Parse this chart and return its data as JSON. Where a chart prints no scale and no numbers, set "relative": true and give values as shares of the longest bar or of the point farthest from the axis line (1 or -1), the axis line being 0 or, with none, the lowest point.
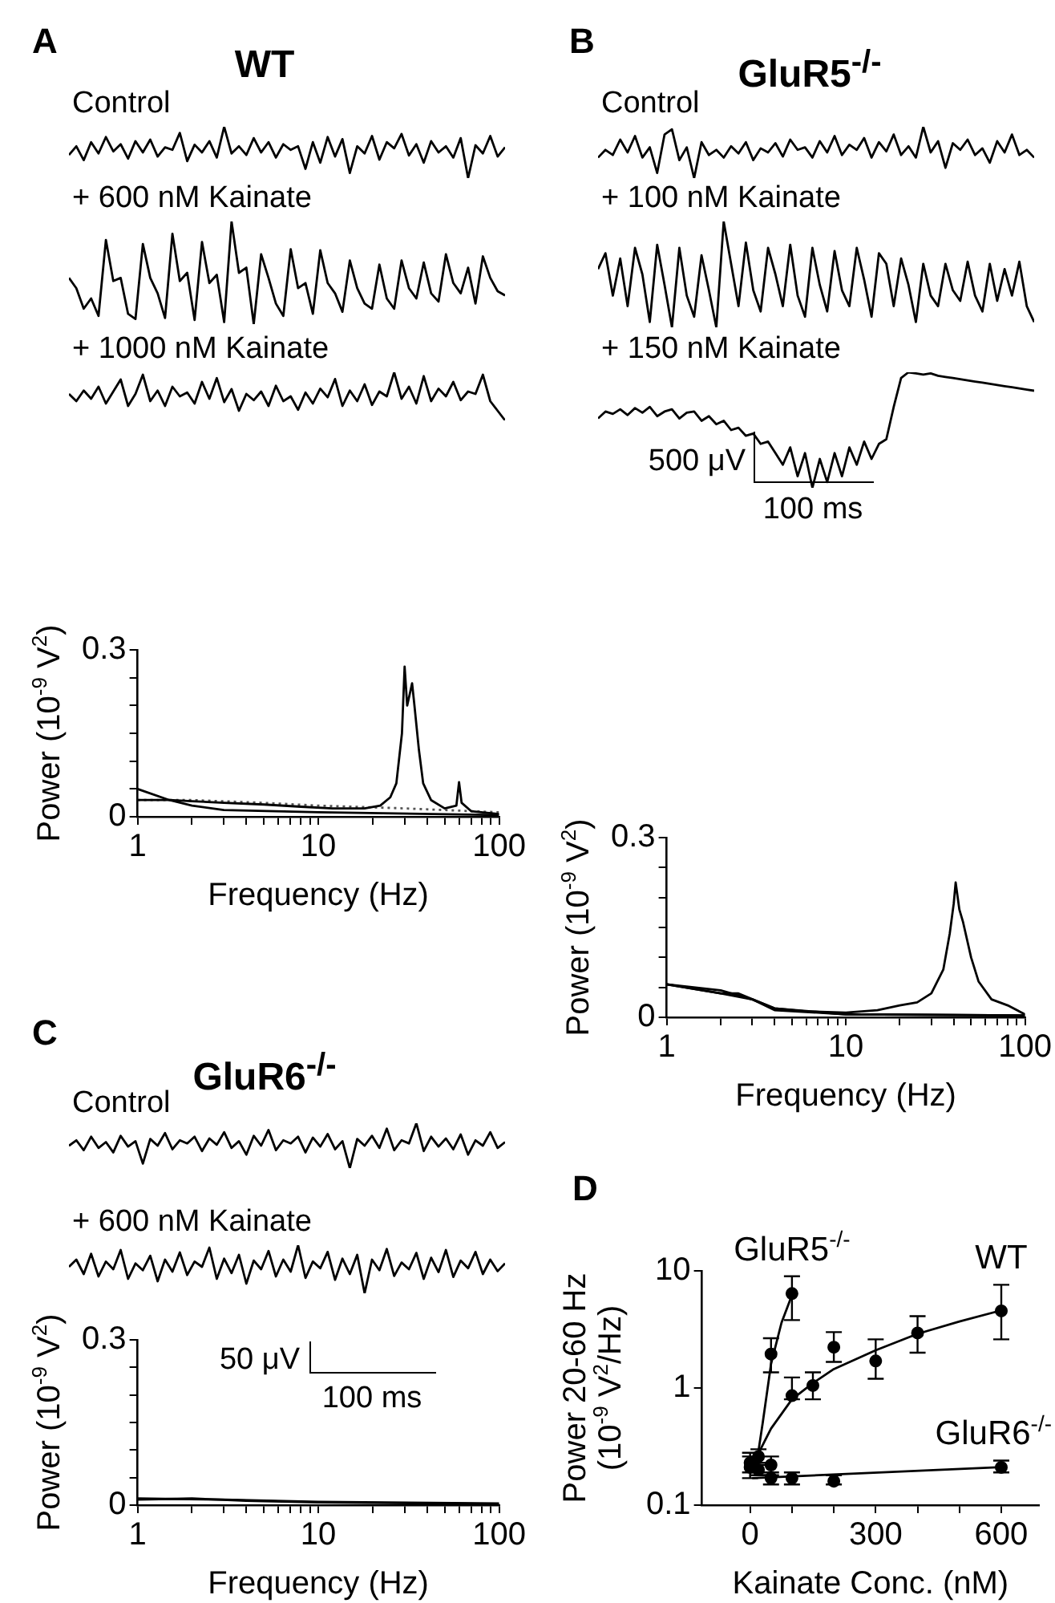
{
  "chart_data": [
    {
      "type": "line",
      "title": "WT",
      "subtitle": "Control",
      "annotations": [
        "A"
      ],
      "relative": true,
      "tick_labels": false,
      "categories": [
        null,
        null,
        null,
        null,
        null,
        null,
        null,
        null,
        null,
        null,
        null,
        null,
        null,
        null,
        null,
        null,
        null,
        null,
        null,
        null,
        null,
        null,
        null,
        null,
        null,
        null,
        null,
        null,
        null,
        null,
        null,
        null,
        null,
        null,
        null,
        null,
        null,
        null,
        null,
        null,
        null,
        null,
        null,
        null,
        null,
        null,
        null,
        null,
        null,
        null,
        null,
        null,
        null,
        null,
        null,
        null,
        null,
        null,
        null,
        null
      ],
      "series": [
        {
          "color": "#000000",
          "values": [
            0.45,
            0.62,
            0.35,
            0.7,
            0.48,
            0.8,
            0.52,
            0.66,
            0.38,
            0.72,
            0.5,
            0.75,
            0.42,
            0.6,
            0.55,
            0.88,
            0.33,
            0.65,
            0.5,
            0.72,
            0.4,
            1.0,
            0.48,
            0.62,
            0.45,
            0.78,
            0.5,
            0.7,
            0.4,
            0.66,
            0.55,
            0.62,
            0.18,
            0.7,
            0.3,
            0.8,
            0.42,
            0.76,
            0.1,
            0.62,
            0.48,
            0.82,
            0.36,
            0.7,
            0.58,
            0.86,
            0.44,
            0.66,
            0.3,
            0.72,
            0.5,
            0.62,
            0.4,
            0.78,
            0.0,
            0.64,
            0.48,
            0.82,
            0.42,
            0.6
          ]
        }
      ]
    },
    {
      "type": "line",
      "title": "+ 600 nM Kainate",
      "relative": true,
      "tick_labels": false,
      "categories": [
        null,
        null,
        null,
        null,
        null,
        null,
        null,
        null,
        null,
        null,
        null,
        null,
        null,
        null,
        null,
        null,
        null,
        null,
        null,
        null,
        null,
        null,
        null,
        null,
        null,
        null,
        null,
        null,
        null,
        null,
        null,
        null,
        null,
        null,
        null,
        null,
        null,
        null,
        null,
        null,
        null,
        null,
        null,
        null,
        null,
        null,
        null,
        null,
        null,
        null,
        null,
        null,
        null,
        null,
        null,
        null,
        null,
        null,
        null,
        null
      ],
      "series": [
        {
          "color": "#000000",
          "values": [
            0.45,
            0.35,
            0.15,
            0.25,
            0.08,
            0.82,
            0.42,
            0.45,
            0.1,
            0.05,
            0.78,
            0.45,
            0.3,
            0.06,
            0.88,
            0.42,
            0.5,
            0.04,
            0.8,
            0.4,
            0.48,
            0.02,
            1.0,
            0.5,
            0.55,
            0.0,
            0.68,
            0.45,
            0.2,
            0.08,
            0.73,
            0.35,
            0.4,
            0.1,
            0.72,
            0.4,
            0.3,
            0.12,
            0.62,
            0.35,
            0.2,
            0.15,
            0.58,
            0.25,
            0.15,
            0.62,
            0.35,
            0.25,
            0.6,
            0.3,
            0.22,
            0.68,
            0.4,
            0.3,
            0.55,
            0.2,
            0.66,
            0.45,
            0.32,
            0.28
          ]
        }
      ]
    },
    {
      "type": "line",
      "title": "+ 1000 nM Kainate",
      "relative": true,
      "tick_labels": false,
      "categories": [
        null,
        null,
        null,
        null,
        null,
        null,
        null,
        null,
        null,
        null,
        null,
        null,
        null,
        null,
        null,
        null,
        null,
        null,
        null,
        null,
        null,
        null,
        null,
        null,
        null,
        null,
        null,
        null,
        null,
        null,
        null,
        null,
        null,
        null,
        null,
        null,
        null,
        null,
        null,
        null,
        null,
        null,
        null,
        null,
        null,
        null,
        null,
        null,
        null,
        null,
        null,
        null,
        null,
        null,
        null,
        null,
        null,
        null,
        null,
        null
      ],
      "series": [
        {
          "color": "#000000",
          "values": [
            0.55,
            0.4,
            0.62,
            0.45,
            0.7,
            0.35,
            0.6,
            0.85,
            0.3,
            0.55,
            0.95,
            0.4,
            0.62,
            0.3,
            0.7,
            0.5,
            0.58,
            0.35,
            0.8,
            0.45,
            0.88,
            0.38,
            0.65,
            0.2,
            0.55,
            0.42,
            0.6,
            0.3,
            0.72,
            0.4,
            0.5,
            0.22,
            0.58,
            0.35,
            0.66,
            0.48,
            0.86,
            0.3,
            0.62,
            0.4,
            0.75,
            0.32,
            0.6,
            0.5,
            1.0,
            0.45,
            0.7,
            0.35,
            0.92,
            0.4,
            0.66,
            0.5,
            0.8,
            0.42,
            0.6,
            0.55,
            0.95,
            0.4,
            0.2,
            0.0
          ]
        }
      ]
    },
    {
      "type": "line",
      "xlabel": "Frequency (Hz)",
      "ylabel": "Power (10$^{-9}$ V$^{2}$)",
      "log": "x",
      "xlim": [
        1,
        100
      ],
      "ylim": [
        0,
        0.3
      ],
      "xticks": [
        1,
        {
          "value": 2,
          "label": null
        },
        {
          "value": 3,
          "label": null
        },
        {
          "value": 4,
          "label": null
        },
        {
          "value": 5,
          "label": null
        },
        {
          "value": 6,
          "label": null
        },
        {
          "value": 7,
          "label": null
        },
        {
          "value": 8,
          "label": null
        },
        {
          "value": 9,
          "label": null
        },
        10,
        {
          "value": 20,
          "label": null
        },
        {
          "value": 30,
          "label": null
        },
        {
          "value": 40,
          "label": null
        },
        {
          "value": 50,
          "label": null
        },
        {
          "value": 60,
          "label": null
        },
        {
          "value": 70,
          "label": null
        },
        {
          "value": 80,
          "label": null
        },
        {
          "value": 90,
          "label": null
        },
        100
      ],
      "yticks": [
        0,
        {
          "value": 0.05,
          "label": null
        },
        {
          "value": 0.1,
          "label": null
        },
        {
          "value": 0.15,
          "label": null
        },
        {
          "value": 0.2,
          "label": null
        },
        {
          "value": 0.25,
          "label": null
        },
        0.3
      ],
      "series": [
        {
          "color": "#000000",
          "x": [
            1,
            1.5,
            2,
            3,
            5,
            8,
            12,
            18,
            22,
            25,
            27,
            29,
            30,
            31,
            32,
            33,
            34,
            36,
            38,
            42,
            50,
            58,
            60,
            62,
            70,
            100
          ],
          "values": [
            0.03,
            0.03,
            0.028,
            0.025,
            0.022,
            0.018,
            0.015,
            0.015,
            0.02,
            0.035,
            0.06,
            0.15,
            0.27,
            0.2,
            0.22,
            0.24,
            0.2,
            0.12,
            0.06,
            0.03,
            0.015,
            0.02,
            0.062,
            0.025,
            0.01,
            0.005
          ]
        },
        {
          "color": "#000000",
          "x": [
            1,
            1.5,
            2,
            3,
            10,
            100
          ],
          "values": [
            0.05,
            0.03,
            0.02,
            0.012,
            0.008,
            0.003
          ]
        },
        {
          "color": "#555555",
          "line_style": "dotted",
          "x": [
            1,
            2,
            5,
            10,
            30,
            100
          ],
          "values": [
            0.03,
            0.03,
            0.025,
            0.02,
            0.015,
            0.008
          ]
        }
      ]
    },
    {
      "type": "line",
      "title": "GluR5$^{-/-}$",
      "subtitle": "Control",
      "annotations": [
        "B"
      ],
      "relative": true,
      "tick_labels": false,
      "categories": [
        null,
        null,
        null,
        null,
        null,
        null,
        null,
        null,
        null,
        null,
        null,
        null,
        null,
        null,
        null,
        null,
        null,
        null,
        null,
        null,
        null,
        null,
        null,
        null,
        null,
        null,
        null,
        null,
        null,
        null,
        null,
        null,
        null,
        null,
        null,
        null,
        null,
        null,
        null,
        null,
        null,
        null,
        null,
        null,
        null,
        null,
        null,
        null,
        null,
        null,
        null,
        null,
        null,
        null,
        null,
        null,
        null,
        null,
        null,
        null
      ],
      "series": [
        {
          "color": "#000000",
          "values": [
            0.4,
            0.55,
            0.45,
            0.75,
            0.5,
            0.82,
            0.4,
            0.6,
            0.1,
            0.85,
            0.95,
            0.35,
            0.6,
            0.0,
            0.7,
            0.45,
            0.55,
            0.4,
            0.62,
            0.48,
            0.7,
            0.35,
            0.58,
            0.5,
            0.68,
            0.42,
            0.75,
            0.55,
            0.6,
            0.4,
            0.72,
            0.5,
            0.82,
            0.45,
            0.65,
            0.55,
            0.78,
            0.4,
            0.7,
            0.52,
            0.85,
            0.45,
            0.62,
            0.4,
            1.0,
            0.5,
            0.72,
            0.2,
            0.68,
            0.55,
            0.75,
            0.45,
            0.58,
            0.3,
            0.72,
            0.5,
            0.85,
            0.45,
            0.55,
            0.4
          ]
        }
      ]
    },
    {
      "type": "line",
      "title": "+ 100 nM Kainate",
      "relative": true,
      "tick_labels": false,
      "categories": [
        null,
        null,
        null,
        null,
        null,
        null,
        null,
        null,
        null,
        null,
        null,
        null,
        null,
        null,
        null,
        null,
        null,
        null,
        null,
        null,
        null,
        null,
        null,
        null,
        null,
        null,
        null,
        null,
        null,
        null,
        null,
        null,
        null,
        null,
        null,
        null,
        null,
        null,
        null,
        null,
        null,
        null,
        null,
        null,
        null,
        null,
        null,
        null,
        null,
        null,
        null,
        null,
        null,
        null,
        null,
        null,
        null,
        null,
        null,
        null
      ],
      "series": [
        {
          "color": "#000000",
          "values": [
            0.55,
            0.7,
            0.3,
            0.65,
            0.2,
            0.75,
            0.5,
            0.05,
            0.78,
            0.4,
            0.0,
            0.75,
            0.3,
            0.1,
            0.68,
            0.35,
            0.0,
            1.0,
            0.6,
            0.2,
            0.8,
            0.35,
            0.15,
            0.75,
            0.5,
            0.2,
            0.78,
            0.3,
            0.1,
            0.75,
            0.4,
            0.15,
            0.72,
            0.35,
            0.2,
            0.75,
            0.45,
            0.1,
            0.7,
            0.6,
            0.2,
            0.65,
            0.4,
            0.05,
            0.6,
            0.3,
            0.2,
            0.6,
            0.35,
            0.25,
            0.62,
            0.3,
            0.15,
            0.6,
            0.25,
            0.55,
            0.3,
            0.62,
            0.2,
            0.05
          ]
        }
      ]
    },
    {
      "type": "line",
      "title": "+ 150 nM Kainate",
      "annotations": [
        "500 μV",
        "100 ms"
      ],
      "relative": true,
      "tick_labels": false,
      "categories": [
        null,
        null,
        null,
        null,
        null,
        null,
        null,
        null,
        null,
        null,
        null,
        null,
        null,
        null,
        null,
        null,
        null,
        null,
        null,
        null,
        null,
        null,
        null,
        null,
        null,
        null,
        null,
        null,
        null,
        null,
        null,
        null,
        null,
        null,
        null,
        null,
        null,
        null,
        null,
        null,
        null,
        null,
        null,
        null,
        null,
        null,
        null,
        null,
        null,
        null,
        null,
        null,
        null,
        null,
        null,
        null,
        null,
        null,
        null,
        null
      ],
      "series": [
        {
          "color": "#000000",
          "values": [
            0.6,
            0.66,
            0.64,
            0.68,
            0.63,
            0.69,
            0.65,
            0.7,
            0.62,
            0.66,
            0.68,
            0.6,
            0.65,
            0.66,
            0.58,
            0.62,
            0.55,
            0.58,
            0.5,
            0.52,
            0.45,
            0.47,
            0.38,
            0.4,
            0.3,
            0.2,
            0.35,
            0.1,
            0.3,
            0.0,
            0.25,
            0.05,
            0.3,
            0.1,
            0.35,
            0.2,
            0.4,
            0.25,
            0.38,
            0.42,
            0.7,
            0.95,
            1.0,
            0.99,
            0.98,
            0.99,
            0.97,
            0.96,
            0.95,
            0.94,
            0.93,
            0.92,
            0.91,
            0.9,
            0.89,
            0.88,
            0.87,
            0.86,
            0.85,
            0.84
          ]
        }
      ]
    },
    {
      "type": "line",
      "xlabel": "Frequency (Hz)",
      "ylabel": "Power (10$^{-9}$ V$^{2}$)",
      "log": "x",
      "xlim": [
        1,
        100
      ],
      "ylim": [
        0,
        0.3
      ],
      "xticks": [
        1,
        {
          "value": 2,
          "label": null
        },
        {
          "value": 3,
          "label": null
        },
        {
          "value": 4,
          "label": null
        },
        {
          "value": 5,
          "label": null
        },
        {
          "value": 6,
          "label": null
        },
        {
          "value": 7,
          "label": null
        },
        {
          "value": 8,
          "label": null
        },
        {
          "value": 9,
          "label": null
        },
        10,
        {
          "value": 20,
          "label": null
        },
        {
          "value": 30,
          "label": null
        },
        {
          "value": 40,
          "label": null
        },
        {
          "value": 50,
          "label": null
        },
        {
          "value": 60,
          "label": null
        },
        {
          "value": 70,
          "label": null
        },
        {
          "value": 80,
          "label": null
        },
        {
          "value": 90,
          "label": null
        },
        100
      ],
      "yticks": [
        0,
        {
          "value": 0.05,
          "label": null
        },
        {
          "value": 0.1,
          "label": null
        },
        {
          "value": 0.15,
          "label": null
        },
        {
          "value": 0.2,
          "label": null
        },
        {
          "value": 0.25,
          "label": null
        },
        0.3
      ],
      "series": [
        {
          "color": "#000000",
          "x": [
            1,
            2,
            3,
            4,
            6,
            10,
            15,
            20,
            25,
            30,
            35,
            38,
            40,
            41,
            43,
            45,
            50,
            55,
            65,
            80,
            100
          ],
          "values": [
            0.055,
            0.04,
            0.03,
            0.015,
            0.01,
            0.008,
            0.012,
            0.02,
            0.025,
            0.04,
            0.08,
            0.14,
            0.19,
            0.225,
            0.18,
            0.16,
            0.1,
            0.06,
            0.03,
            0.02,
            0.005
          ]
        },
        {
          "color": "#000000",
          "x": [
            1,
            2,
            3,
            4,
            10,
            100
          ],
          "values": [
            0.055,
            0.045,
            0.03,
            0.012,
            0.005,
            0.003
          ]
        },
        {
          "color": "#000000",
          "x": [
            1,
            2,
            2.5,
            4,
            10,
            100
          ],
          "values": [
            0.055,
            0.04,
            0.04,
            0.015,
            0.005,
            0.003
          ]
        }
      ]
    },
    {
      "type": "line",
      "title": "GluR6$^{-/-}$",
      "subtitle": "Control",
      "annotations": [
        "C"
      ],
      "relative": true,
      "tick_labels": false,
      "categories": [
        null,
        null,
        null,
        null,
        null,
        null,
        null,
        null,
        null,
        null,
        null,
        null,
        null,
        null,
        null,
        null,
        null,
        null,
        null,
        null,
        null,
        null,
        null,
        null,
        null,
        null,
        null,
        null,
        null,
        null,
        null,
        null,
        null,
        null,
        null,
        null,
        null,
        null,
        null,
        null,
        null,
        null,
        null,
        null,
        null,
        null,
        null,
        null,
        null,
        null,
        null,
        null,
        null,
        null,
        null,
        null,
        null,
        null,
        null,
        null
      ],
      "series": [
        {
          "color": "#000000",
          "values": [
            0.5,
            0.62,
            0.4,
            0.7,
            0.45,
            0.58,
            0.35,
            0.72,
            0.48,
            0.6,
            0.1,
            0.65,
            0.5,
            0.78,
            0.42,
            0.62,
            0.55,
            0.7,
            0.38,
            0.66,
            0.52,
            0.8,
            0.45,
            0.6,
            0.3,
            0.72,
            0.5,
            0.85,
            0.4,
            0.62,
            0.55,
            0.7,
            0.35,
            0.68,
            0.48,
            0.76,
            0.42,
            0.6,
            0.0,
            0.65,
            0.5,
            0.72,
            0.45,
            0.88,
            0.4,
            0.62,
            0.55,
            1.0,
            0.38,
            0.7,
            0.48,
            0.66,
            0.42,
            0.75,
            0.3,
            0.62,
            0.5,
            0.8,
            0.45,
            0.58
          ]
        }
      ]
    },
    {
      "type": "line",
      "title": "+ 600 nM Kainate",
      "annotations": [
        "50 μV",
        "100 ms"
      ],
      "relative": true,
      "tick_labels": false,
      "categories": [
        null,
        null,
        null,
        null,
        null,
        null,
        null,
        null,
        null,
        null,
        null,
        null,
        null,
        null,
        null,
        null,
        null,
        null,
        null,
        null,
        null,
        null,
        null,
        null,
        null,
        null,
        null,
        null,
        null,
        null,
        null,
        null,
        null,
        null,
        null,
        null,
        null,
        null,
        null,
        null,
        null,
        null,
        null,
        null,
        null,
        null,
        null,
        null,
        null,
        null,
        null,
        null,
        null,
        null,
        null,
        null,
        null,
        null,
        null,
        null
      ],
      "series": [
        {
          "color": "#000000",
          "values": [
            0.55,
            0.7,
            0.4,
            0.82,
            0.35,
            0.66,
            0.5,
            0.9,
            0.3,
            0.62,
            0.48,
            0.78,
            0.25,
            0.7,
            0.45,
            0.85,
            0.38,
            0.66,
            0.55,
            0.95,
            0.3,
            0.72,
            0.42,
            0.8,
            0.2,
            0.68,
            0.5,
            0.88,
            0.35,
            0.7,
            0.45,
            1.0,
            0.32,
            0.66,
            0.52,
            0.86,
            0.28,
            0.72,
            0.4,
            0.8,
            0.0,
            0.7,
            0.48,
            0.92,
            0.36,
            0.64,
            0.5,
            0.84,
            0.3,
            0.74,
            0.44,
            0.9,
            0.34,
            0.68,
            0.52,
            0.86,
            0.4,
            0.7,
            0.46,
            0.62
          ]
        }
      ]
    },
    {
      "type": "line",
      "xlabel": "Frequency (Hz)",
      "ylabel": "Power (10$^{-9}$ V$^{2}$)",
      "log": "x",
      "xlim": [
        1,
        100
      ],
      "ylim": [
        0,
        0.3
      ],
      "xticks": [
        1,
        {
          "value": 2,
          "label": null
        },
        {
          "value": 3,
          "label": null
        },
        {
          "value": 4,
          "label": null
        },
        {
          "value": 5,
          "label": null
        },
        {
          "value": 6,
          "label": null
        },
        {
          "value": 7,
          "label": null
        },
        {
          "value": 8,
          "label": null
        },
        {
          "value": 9,
          "label": null
        },
        10,
        {
          "value": 20,
          "label": null
        },
        {
          "value": 30,
          "label": null
        },
        {
          "value": 40,
          "label": null
        },
        {
          "value": 50,
          "label": null
        },
        {
          "value": 60,
          "label": null
        },
        {
          "value": 70,
          "label": null
        },
        {
          "value": 80,
          "label": null
        },
        {
          "value": 90,
          "label": null
        },
        100
      ],
      "yticks": [
        0,
        {
          "value": 0.05,
          "label": null
        },
        {
          "value": 0.1,
          "label": null
        },
        {
          "value": 0.15,
          "label": null
        },
        {
          "value": 0.2,
          "label": null
        },
        {
          "value": 0.25,
          "label": null
        },
        0.3
      ],
      "series": [
        {
          "color": "#000000",
          "x": [
            1,
            3,
            10,
            100
          ],
          "values": [
            0.012,
            0.01,
            0.006,
            0.003
          ]
        },
        {
          "color": "#000000",
          "x": [
            1,
            2,
            4,
            10,
            100
          ],
          "values": [
            0.01,
            0.012,
            0.008,
            0.005,
            0.002
          ]
        }
      ]
    },
    {
      "type": "scatter",
      "annotations": [
        "D"
      ],
      "marker": "circle",
      "xlabel": "Kainate Conc. (nM)",
      "ylabel": "Power 20-60 Hz (10$^{-9}$ V$^{2}$/Hz)",
      "log": "y",
      "xlim": [
        -115,
        690
      ],
      "ylim": [
        0.1,
        10
      ],
      "xticks": [
        0,
        {
          "value": 100,
          "label": null
        },
        {
          "value": 200,
          "label": null
        },
        300,
        {
          "value": 400,
          "label": null
        },
        {
          "value": 500,
          "label": null
        },
        600
      ],
      "yticks": [
        0.1,
        1,
        10
      ],
      "series": [
        {
          "name": "GluR5$^{-/-}$",
          "color": "#000000",
          "x": [
            0,
            20,
            50,
            100
          ],
          "values": [
            0.21,
            0.26,
            1.95,
            6.4
          ],
          "errors": [
            [
              0.17,
              0.26
            ],
            [
              0.22,
              0.3
            ],
            [
              1.36,
              2.66
            ],
            [
              3.8,
              9
            ]
          ]
        },
        {
          "name": "WT",
          "color": "#000000",
          "x": [
            0,
            20,
            50,
            100,
            150,
            200,
            300,
            400,
            600
          ],
          "values": [
            0.23,
            null,
            0.22,
            0.86,
            1.05,
            2.23,
            1.7,
            2.95,
            4.55
          ],
          "errors": [
            [
              0.19,
              0.28
            ],
            null,
            [
              0.18,
              0.26
            ],
            [
              0.8,
              1.23
            ],
            [
              0.8,
              1.36
            ],
            [
              1.67,
              3
            ],
            [
              1.2,
              2.6
            ],
            [
              2,
              4.1
            ],
            [
              2.6,
              7.6
            ]
          ]
        },
        {
          "name": "GluR6$^{-/-}$",
          "color": "#000000",
          "x": [
            20,
            50,
            100,
            200,
            600
          ],
          "values": [
            0.2,
            0.17,
            0.17,
            0.16,
            0.21
          ],
          "errors": [
            [
              0.18,
              0.23
            ],
            [
              0.15,
              0.19
            ],
            [
              0.15,
              0.19
            ],
            [
              0.15,
              0.18
            ],
            [
              0.19,
              0.24
            ]
          ]
        },
        {
          "type": "line",
          "marker": "none",
          "color": "#000000",
          "x": [
            15,
            30,
            50,
            75,
            100
          ],
          "values": [
            0.22,
            0.5,
            1.6,
            3.6,
            6.2
          ]
        },
        {
          "type": "line",
          "marker": "none",
          "color": "#000000",
          "x": [
            0,
            25,
            50,
            100,
            150,
            200,
            300,
            400,
            500,
            600
          ],
          "values": [
            0.2,
            0.3,
            0.45,
            0.8,
            1.1,
            1.45,
            2.1,
            2.9,
            3.7,
            4.6
          ]
        },
        {
          "type": "line",
          "marker": "none",
          "color": "#000000",
          "x": [
            5,
            590
          ],
          "values": [
            0.17,
            0.21
          ]
        }
      ]
    }
  ]
}
